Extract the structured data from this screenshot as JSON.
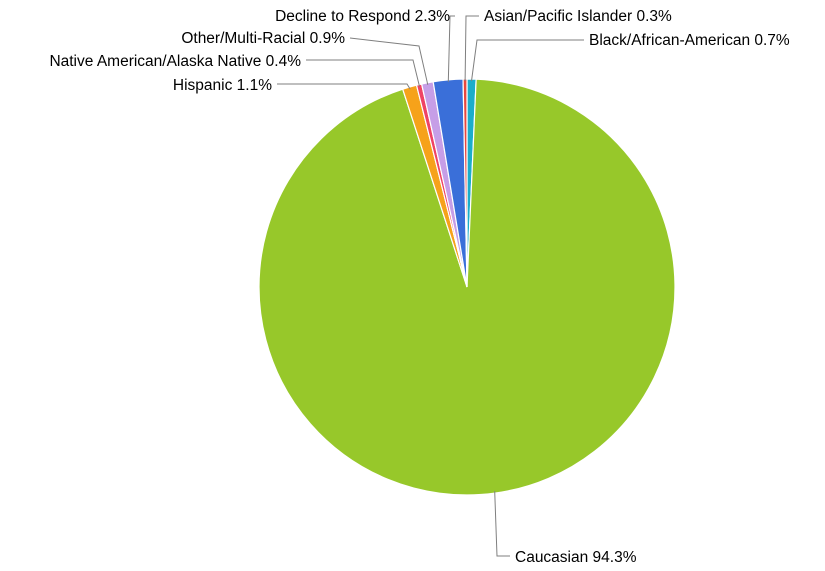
{
  "chart_data": {
    "type": "pie",
    "title": "",
    "slices": [
      {
        "name": "Black/African-American",
        "value": 0.7,
        "label": "Black/African-American 0.7%",
        "color": "#1cadc9"
      },
      {
        "name": "Caucasian",
        "value": 94.3,
        "label": "Caucasian 94.3%",
        "color": "#97c82a"
      },
      {
        "name": "Hispanic",
        "value": 1.1,
        "label": "Hispanic 1.1%",
        "color": "#f6a21a"
      },
      {
        "name": "Native American/Alaska Native",
        "value": 0.4,
        "label": "Native American/Alaska Native 0.4%",
        "color": "#ef4364"
      },
      {
        "name": "Other/Multi-Racial",
        "value": 0.9,
        "label": "Other/Multi-Racial 0.9%",
        "color": "#c69ee7"
      },
      {
        "name": "Decline to Respond",
        "value": 2.3,
        "label": "Decline to Respond 2.3%",
        "color": "#3a6fd9"
      },
      {
        "name": "Asian/Pacific Islander",
        "value": 0.3,
        "label": "Asian/Pacific Islander 0.3%",
        "color": "#e8473d"
      }
    ],
    "legend": "none",
    "data_labels": "outside with leader lines"
  }
}
